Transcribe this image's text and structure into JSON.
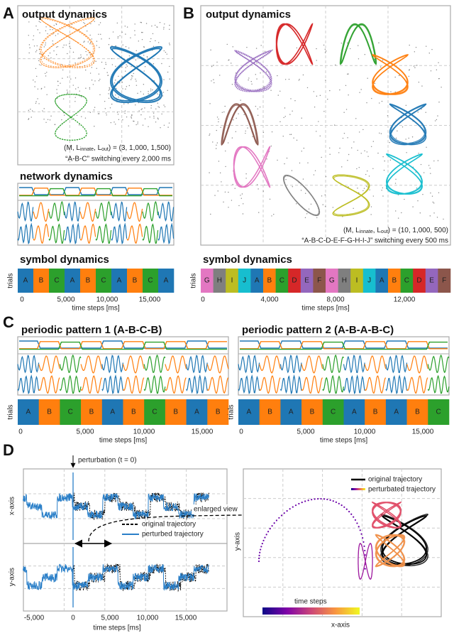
{
  "panels": {
    "A": {
      "label": "A",
      "output": {
        "title": "output dynamics",
        "params": [
          "(M, L",
          "innate",
          ", L",
          "out",
          ") = (3, 1,000, 1,500)"
        ],
        "switching": "“A-B-C” switching every 2,000 ms"
      },
      "network": {
        "title": "network dynamics"
      },
      "symbol": {
        "title": "symbol dynamics",
        "ylabel": "trials",
        "symbols": [
          "A",
          "B",
          "C",
          "A",
          "B",
          "C",
          "A",
          "B",
          "C",
          "A"
        ],
        "ticks": [
          "0",
          "5,000",
          "10,000",
          "15,000"
        ],
        "xlabel": "time steps [ms]"
      }
    },
    "B": {
      "label": "B",
      "output": {
        "title": "output dynamics",
        "params": [
          "(M, L",
          "innate",
          ", L",
          "out",
          ") = (10, 1,000, 500)"
        ],
        "switching": "“A-B-C-D-E-F-G-H-I-J” switching every 500 ms"
      },
      "symbol": {
        "title": "symbol dynamics",
        "ylabel": "trials",
        "symbols": [
          "G",
          "H",
          "I",
          "J",
          "A",
          "B",
          "C",
          "D",
          "E",
          "F",
          "G",
          "H",
          "I",
          "J",
          "A",
          "B",
          "C",
          "D",
          "E",
          "F"
        ],
        "ticks": [
          "0",
          "4,000",
          "8,000",
          "12,000"
        ],
        "xlabel": "time steps [ms]"
      }
    },
    "C": {
      "label": "C",
      "left": {
        "title": "periodic pattern 1 (A-B-C-B)",
        "ylabel": "trials",
        "symbols": [
          "A",
          "B",
          "C",
          "B",
          "A",
          "B",
          "C",
          "B",
          "A",
          "B"
        ],
        "ticks": [
          "0",
          "5,000",
          "10,000",
          "15,000"
        ],
        "xlabel": "time steps [ms]"
      },
      "right": {
        "title": "periodic pattern 2 (A-B-A-B-C)",
        "ylabel": "trials",
        "symbols": [
          "A",
          "B",
          "A",
          "B",
          "C",
          "A",
          "B",
          "A",
          "B",
          "C"
        ],
        "ticks": [
          "0",
          "5,000",
          "10,000",
          "15,000"
        ],
        "xlabel": "time steps [ms]"
      }
    },
    "D": {
      "label": "D",
      "left": {
        "perturbation": "perturbation (t = 0)",
        "xaxis": "x-axis",
        "yaxis": "y-axis",
        "legend": [
          "original trajectory",
          "perturbed trajectory"
        ],
        "enlarged": "enlarged view",
        "ticks": [
          "-5,000",
          "0",
          "5,000",
          "10,000",
          "15,000"
        ],
        "xlabel": "time steps [ms]"
      },
      "right": {
        "legend": [
          "original trajectory",
          "perturbated trajectory"
        ],
        "colorbar_label": "time steps",
        "xlabel": "x-axis",
        "ylabel": "y-axis"
      }
    }
  },
  "symbol_colors": {
    "A": "#1f77b4",
    "B": "#ff7f0e",
    "C": "#2ca02c",
    "D": "#d62728",
    "E": "#9467bd",
    "F": "#8c564b",
    "G": "#e377c2",
    "H": "#7f7f7f",
    "I": "#bcbd22",
    "J": "#17becf"
  }
}
